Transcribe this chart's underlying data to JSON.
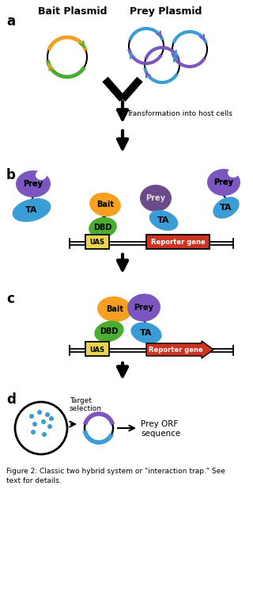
{
  "title_bait": "Bait Plasmid",
  "title_prey": "Prey Plasmid",
  "label_a": "a",
  "label_b": "b",
  "label_c": "c",
  "label_d": "d",
  "transformation_text": "Transformation into host cells",
  "reporter_gene_text": "Reporter gene",
  "uas_text": "UAS",
  "bait_text": "Bait",
  "prey_text": "Prey",
  "dbd_text": "DBD",
  "ta_text": "TA",
  "target_selection_text": "Target\nselection",
  "prey_orf_text": "Prey ORF\nsequence",
  "caption": "Figure 2: Classic two hybrid system or \"interaction trap.\" See\ntext for details.",
  "color_orange": "#F5A020",
  "color_green": "#4AAD30",
  "color_blue": "#3A9DD5",
  "color_purple": "#7B55C0",
  "color_dark_purple": "#6B4A8A",
  "color_yellow": "#E8D44D",
  "color_red": "#CC3322",
  "bg_color": "#FFFFFF"
}
